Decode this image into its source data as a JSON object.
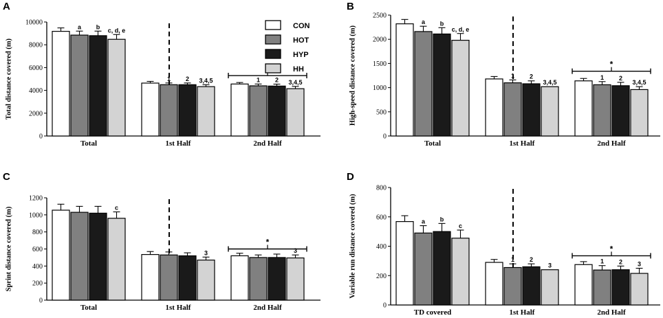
{
  "colors": {
    "CON": "#ffffff",
    "HOT": "#808080",
    "HYP": "#1a1a1a",
    "HH": "#d3d3d3",
    "axis": "#000000"
  },
  "legend": [
    "CON",
    "HOT",
    "HYP",
    "HH"
  ],
  "chart_data": [
    {
      "type": "bar",
      "panel": "A",
      "ylabel": "Total distance covered (m)",
      "ylim": [
        0,
        10000
      ],
      "yticks": [
        0,
        2000,
        4000,
        6000,
        8000,
        10000
      ],
      "categories": [
        "Total",
        "1st Half",
        "2nd Half"
      ],
      "series": [
        {
          "name": "CON",
          "values": [
            9180,
            4640,
            4560
          ],
          "errors": [
            300,
            150,
            130
          ]
        },
        {
          "name": "HOT",
          "values": [
            8850,
            4500,
            4400
          ],
          "errors": [
            350,
            150,
            160
          ]
        },
        {
          "name": "HYP",
          "values": [
            8800,
            4500,
            4380
          ],
          "errors": [
            400,
            150,
            170
          ]
        },
        {
          "name": "HH",
          "values": [
            8480,
            4330,
            4150
          ],
          "errors": [
            420,
            170,
            200
          ]
        }
      ],
      "annotations": [
        {
          "group": 0,
          "series": 1,
          "text": "a"
        },
        {
          "group": 0,
          "series": 2,
          "text": "b"
        },
        {
          "group": 0,
          "series": 3,
          "text": "c, d, e"
        },
        {
          "group": 1,
          "series": 1,
          "text": "1"
        },
        {
          "group": 1,
          "series": 2,
          "text": "2"
        },
        {
          "group": 1,
          "series": 3,
          "text": "3,4,5"
        },
        {
          "group": 2,
          "series": 1,
          "text": "1"
        },
        {
          "group": 2,
          "series": 2,
          "text": "2"
        },
        {
          "group": 2,
          "series": 3,
          "text": "3,4,5"
        }
      ],
      "bracket": {
        "group": 2,
        "text": "*",
        "level": 5300
      }
    },
    {
      "type": "bar",
      "panel": "B",
      "ylabel": "High-speed distance covered (m)",
      "ylim": [
        0,
        2500
      ],
      "yticks": [
        0,
        500,
        1000,
        1500,
        2000,
        2500
      ],
      "categories": [
        "Total",
        "1st Half",
        "2nd Half"
      ],
      "series": [
        {
          "name": "CON",
          "values": [
            2320,
            1180,
            1140
          ],
          "errors": [
            90,
            50,
            50
          ]
        },
        {
          "name": "HOT",
          "values": [
            2160,
            1100,
            1060
          ],
          "errors": [
            110,
            60,
            65
          ]
        },
        {
          "name": "HYP",
          "values": [
            2110,
            1080,
            1040
          ],
          "errors": [
            130,
            60,
            70
          ]
        },
        {
          "name": "HH",
          "values": [
            1980,
            1020,
            960
          ],
          "errors": [
            140,
            0,
            60
          ]
        }
      ],
      "annotations": [
        {
          "group": 0,
          "series": 1,
          "text": "a"
        },
        {
          "group": 0,
          "series": 2,
          "text": "b"
        },
        {
          "group": 0,
          "series": 3,
          "text": "c, d, e"
        },
        {
          "group": 1,
          "series": 1,
          "text": "1"
        },
        {
          "group": 1,
          "series": 2,
          "text": "2"
        },
        {
          "group": 1,
          "series": 3,
          "text": "3,4,5"
        },
        {
          "group": 2,
          "series": 1,
          "text": "1"
        },
        {
          "group": 2,
          "series": 2,
          "text": "2"
        },
        {
          "group": 2,
          "series": 3,
          "text": "3,4,5"
        }
      ],
      "bracket": {
        "group": 2,
        "text": "*",
        "level": 1340
      }
    },
    {
      "type": "bar",
      "panel": "C",
      "ylabel": "Sprint distance covered (m)",
      "ylim": [
        0,
        1200
      ],
      "yticks": [
        0,
        200,
        400,
        600,
        800,
        1000,
        1200
      ],
      "categories": [
        "Total",
        "1st Half",
        "2nd Half"
      ],
      "series": [
        {
          "name": "CON",
          "values": [
            1055,
            535,
            520
          ],
          "errors": [
            70,
            35,
            30
          ]
        },
        {
          "name": "HOT",
          "values": [
            1030,
            530,
            500
          ],
          "errors": [
            70,
            35,
            30
          ]
        },
        {
          "name": "HYP",
          "values": [
            1020,
            520,
            500
          ],
          "errors": [
            80,
            35,
            40
          ]
        },
        {
          "name": "HH",
          "values": [
            960,
            470,
            495
          ],
          "errors": [
            75,
            35,
            35
          ]
        }
      ],
      "annotations": [
        {
          "group": 0,
          "series": 3,
          "text": "c"
        },
        {
          "group": 1,
          "series": 3,
          "text": "3"
        },
        {
          "group": 2,
          "series": 3,
          "text": "3"
        }
      ],
      "bracket": {
        "group": 2,
        "text": "*",
        "level": 600
      }
    },
    {
      "type": "bar",
      "panel": "D",
      "ylabel": "Variable run distance covered (m)",
      "ylim": [
        0,
        800
      ],
      "yticks": [
        0,
        200,
        400,
        600,
        800
      ],
      "categories": [
        "TD covered",
        "1st Half",
        "2nd Half"
      ],
      "series": [
        {
          "name": "CON",
          "values": [
            568,
            290,
            275
          ],
          "errors": [
            40,
            20,
            20
          ]
        },
        {
          "name": "HOT",
          "values": [
            490,
            255,
            238
          ],
          "errors": [
            50,
            25,
            30
          ]
        },
        {
          "name": "HYP",
          "values": [
            500,
            260,
            240
          ],
          "errors": [
            55,
            20,
            25
          ]
        },
        {
          "name": "HH",
          "values": [
            455,
            240,
            215
          ],
          "errors": [
            55,
            0,
            35
          ]
        }
      ],
      "annotations": [
        {
          "group": 0,
          "series": 1,
          "text": "a"
        },
        {
          "group": 0,
          "series": 2,
          "text": "b"
        },
        {
          "group": 0,
          "series": 3,
          "text": "c"
        },
        {
          "group": 1,
          "series": 1,
          "text": "1"
        },
        {
          "group": 1,
          "series": 2,
          "text": "2"
        },
        {
          "group": 1,
          "series": 3,
          "text": "3"
        },
        {
          "group": 2,
          "series": 1,
          "text": "1"
        },
        {
          "group": 2,
          "series": 2,
          "text": "2"
        },
        {
          "group": 2,
          "series": 3,
          "text": "3"
        }
      ],
      "bracket": {
        "group": 2,
        "text": "*",
        "level": 335
      }
    }
  ]
}
